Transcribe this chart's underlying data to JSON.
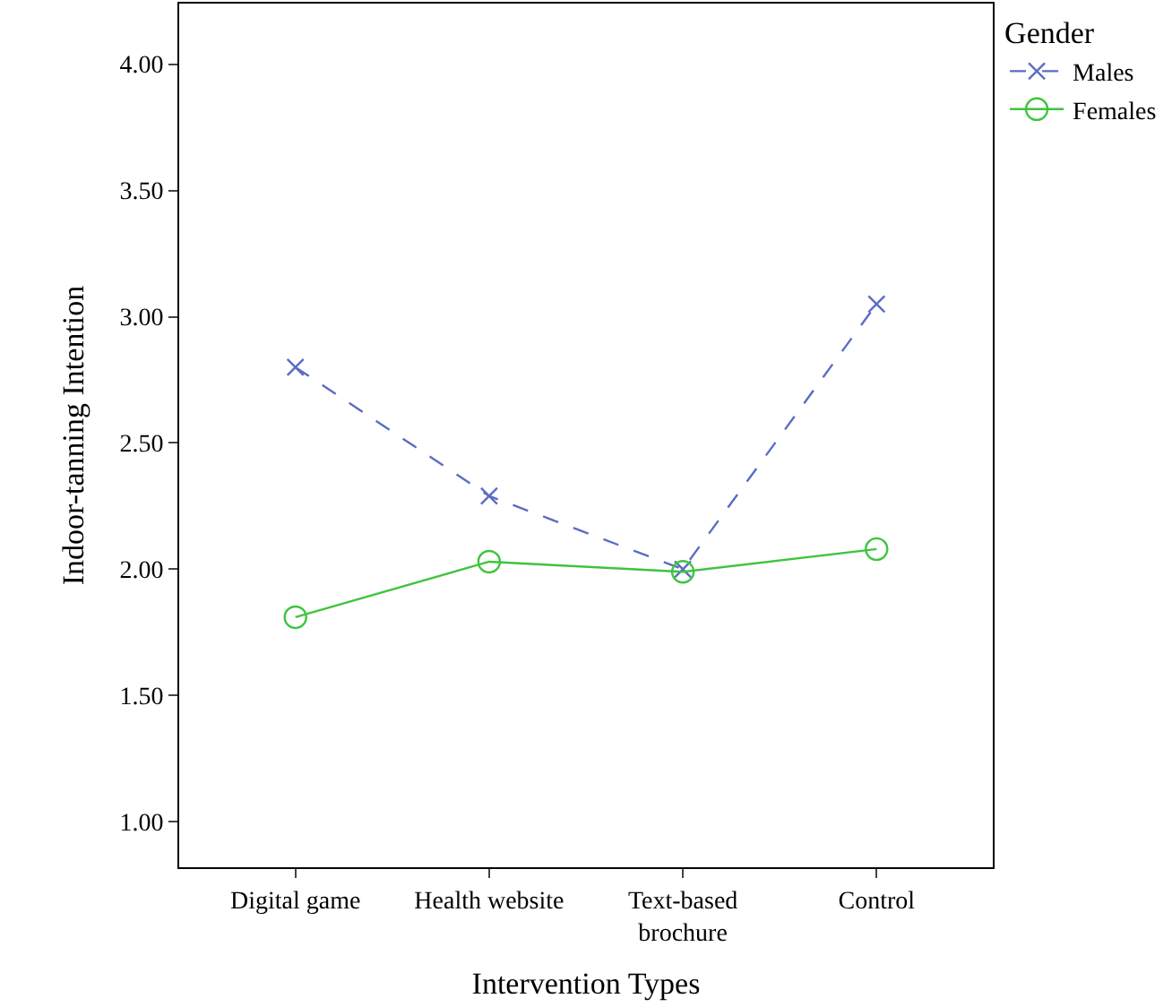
{
  "chart_data": {
    "type": "line",
    "xlabel": "Intervention Types",
    "ylabel": "Indoor-tanning Intention",
    "legend_title": "Gender",
    "legend": "top right",
    "categories": [
      "Digital game",
      "Health website",
      "Text-based\nbrochure",
      "Control"
    ],
    "ylim": [
      0.82,
      4.24
    ],
    "yticks": [
      {
        "value": 1,
        "label": "1.00"
      },
      {
        "value": 1.5,
        "label": "1.50"
      },
      {
        "value": 2,
        "label": "2.00"
      },
      {
        "value": 2.5,
        "label": "2.50"
      },
      {
        "value": 3,
        "label": "3.00"
      },
      {
        "value": 3.5,
        "label": "3.50"
      },
      {
        "value": 4,
        "label": "4.00"
      }
    ],
    "series": [
      {
        "name": "Males",
        "color": "#5b6cc4",
        "values": [
          2.8,
          2.29,
          2.0,
          3.05
        ],
        "marker": "cross",
        "line_style": "dashed"
      },
      {
        "name": "Females",
        "color": "#3ec43e",
        "values": [
          1.81,
          2.03,
          1.99,
          2.08
        ],
        "marker": "circle",
        "line_style": "solid"
      }
    ]
  }
}
